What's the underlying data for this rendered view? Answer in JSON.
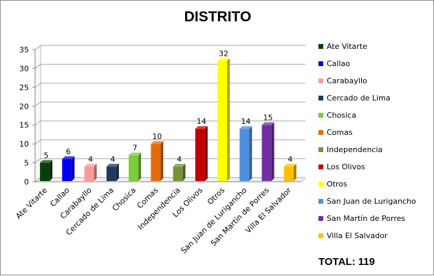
{
  "chart_data": {
    "type": "bar",
    "title": "DISTRITO",
    "categories": [
      "Ate Vitarte",
      "Callao",
      "Carabayllo",
      "Cercado de Lima",
      "Chosica",
      "Comas",
      "Independencia",
      "Los Olivos",
      "Otros",
      "San Juan de Lurigancho",
      "San Martín de Porres",
      "Villa El Salvador"
    ],
    "values": [
      5,
      6,
      4,
      4,
      7,
      10,
      4,
      14,
      32,
      14,
      15,
      4
    ],
    "colors": [
      "#0b3d0b",
      "#0000ee",
      "#ff9999",
      "#1f3a5f",
      "#7acc3a",
      "#e36c0a",
      "#76923c",
      "#c00000",
      "#ffff00",
      "#4f8fdc",
      "#7030a0",
      "#ffc000"
    ],
    "ylim": [
      0,
      35
    ],
    "yticks": [
      0,
      5,
      10,
      15,
      20,
      25,
      30,
      35
    ],
    "grid": true,
    "legend_position": "right",
    "data_labels": true,
    "total_label": "TOTAL: 119"
  }
}
